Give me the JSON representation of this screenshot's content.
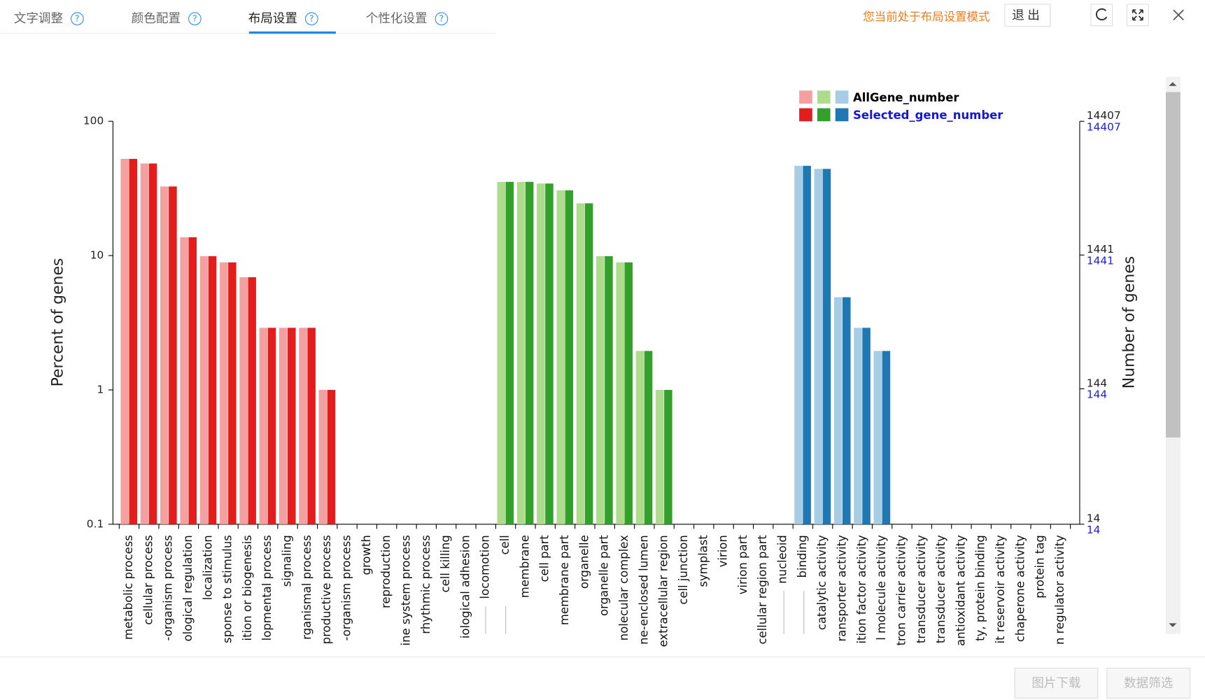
{
  "tabs": [
    "文字调整",
    "颜色配置",
    "布局设置",
    "个性化设置"
  ],
  "help_icon": "?",
  "mode_notice": "您当前处于布局设置模式",
  "exit_button": "退出",
  "buttons": [
    "图片下载",
    "数据筛选"
  ],
  "chart_data": {
    "type": "bar",
    "y_label": "Percent of genes",
    "y2_label": "Number of genes",
    "yscale": "log",
    "ylim": [
      0.1,
      100
    ],
    "yticks": [
      0.1,
      1,
      10,
      100
    ],
    "y2scale": "log",
    "y2lim": [
      14,
      14407
    ],
    "y2ticks": [
      14,
      144,
      1441,
      14407
    ],
    "legend": "top-right",
    "categories": [
      "metabolic process",
      "cellular process",
      "-organism process",
      "ological regulation",
      "localization",
      "sponse to stimulus",
      "ition or biogenesis",
      "lopmental process",
      "signaling",
      "rganismal process",
      "productive process",
      "-organism process",
      "growth",
      "reproduction",
      "ine system process",
      "rhythmic process",
      "cell killing",
      "iological adhesion",
      "locomotion",
      "cell",
      "membrane",
      "cell part",
      "membrane part",
      "organelle",
      "organelle part",
      "nolecular complex",
      "ne-enclosed lumen",
      "extracellular region",
      "cell junction",
      "symplast",
      "virion",
      "virion part",
      "cellular region part",
      "nucleoid",
      "binding",
      "catalytic activity",
      "ransporter activity",
      "ition factor activity",
      "l molecule activity",
      "tron carrier activity",
      "transducer activity",
      "transducer activity",
      "antioxidant activity",
      "ty, protein binding",
      "it reservoir activity",
      "chaperone activity",
      "protein tag",
      "n regulator activity"
    ],
    "series": [
      {
        "name": "AllGene_number",
        "colors": [
          "#f4a0a0",
          "#f4a0a0",
          "#f4a0a0",
          "#f4a0a0",
          "#f4a0a0",
          "#f4a0a0",
          "#f4a0a0",
          "#f4a0a0",
          "#f4a0a0",
          "#f4a0a0",
          "#f4a0a0",
          "#f4a0a0",
          "#f4a0a0",
          "#f4a0a0",
          "#f4a0a0",
          "#f4a0a0",
          "#f4a0a0",
          "#f4a0a0",
          "#f4a0a0",
          "#acdc8c",
          "#acdc8c",
          "#acdc8c",
          "#acdc8c",
          "#acdc8c",
          "#acdc8c",
          "#acdc8c",
          "#acdc8c",
          "#acdc8c",
          "#acdc8c",
          "#acdc8c",
          "#acdc8c",
          "#acdc8c",
          "#acdc8c",
          "#acdc8c",
          "#a6cde3",
          "#a6cde3",
          "#a6cde3",
          "#a6cde3",
          "#a6cde3",
          "#a6cde3",
          "#a6cde3",
          "#a6cde3",
          "#a6cde3",
          "#a6cde3",
          "#a6cde3",
          "#a6cde3",
          "#a6cde3",
          "#a6cde3"
        ],
        "values": [
          52.5,
          48.5,
          32.7,
          13.7,
          9.9,
          8.9,
          6.9,
          2.9,
          2.9,
          2.9,
          1.0,
          0,
          0,
          0,
          0,
          0,
          0,
          0,
          0,
          35.4,
          35.4,
          34.4,
          30.6,
          24.5,
          9.9,
          8.9,
          1.95,
          1.0,
          0,
          0,
          0,
          0,
          0,
          0,
          46.6,
          44.2,
          4.9,
          2.9,
          1.95,
          0,
          0,
          0,
          0,
          0,
          0,
          0,
          0,
          0
        ]
      },
      {
        "name": "Selected_gene_number",
        "colors": [
          "#e31c1c",
          "#e31c1c",
          "#e31c1c",
          "#e31c1c",
          "#e31c1c",
          "#e31c1c",
          "#e31c1c",
          "#e31c1c",
          "#e31c1c",
          "#e31c1c",
          "#e31c1c",
          "#e31c1c",
          "#e31c1c",
          "#e31c1c",
          "#e31c1c",
          "#e31c1c",
          "#e31c1c",
          "#e31c1c",
          "#e31c1c",
          "#33a02c",
          "#33a02c",
          "#33a02c",
          "#33a02c",
          "#33a02c",
          "#33a02c",
          "#33a02c",
          "#33a02c",
          "#33a02c",
          "#33a02c",
          "#33a02c",
          "#33a02c",
          "#33a02c",
          "#33a02c",
          "#33a02c",
          "#1f78b4",
          "#1f78b4",
          "#1f78b4",
          "#1f78b4",
          "#1f78b4",
          "#1f78b4",
          "#1f78b4",
          "#1f78b4",
          "#1f78b4",
          "#1f78b4",
          "#1f78b4",
          "#1f78b4",
          "#1f78b4",
          "#1f78b4"
        ],
        "values": [
          52.5,
          48.5,
          32.7,
          13.7,
          9.9,
          8.9,
          6.9,
          2.9,
          2.9,
          2.9,
          1.0,
          0,
          0,
          0,
          0,
          0,
          0,
          0,
          0,
          35.4,
          35.4,
          34.4,
          30.6,
          24.5,
          9.9,
          8.9,
          1.95,
          1.0,
          0,
          0,
          0,
          0,
          0,
          0,
          46.6,
          44.2,
          4.9,
          2.9,
          1.95,
          0,
          0,
          0,
          0,
          0,
          0,
          0,
          0,
          0
        ]
      }
    ]
  }
}
